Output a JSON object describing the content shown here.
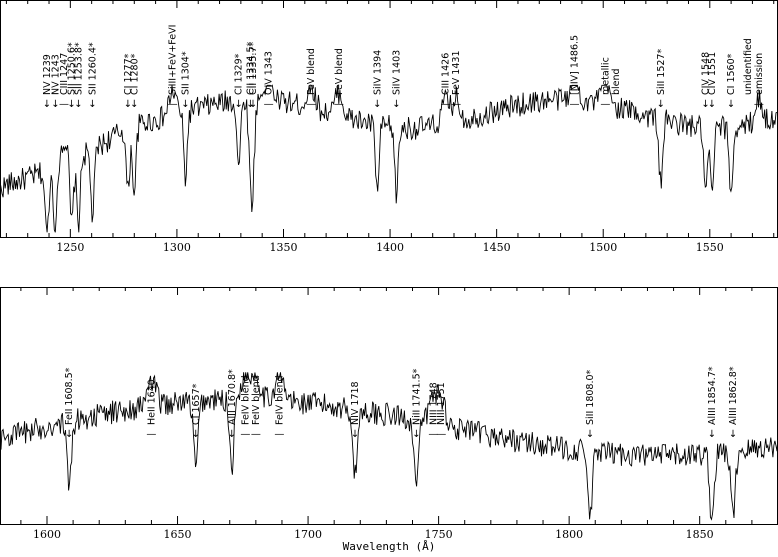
{
  "chart_data": [
    {
      "type": "line",
      "name": "panel-top",
      "xlim": [
        1217,
        1582
      ],
      "ticks": [
        1250,
        1300,
        1350,
        1400,
        1450,
        1500,
        1550
      ],
      "tick_labels": [
        "1250",
        "1300",
        "1350",
        "1400",
        "1450",
        "1500",
        "1550"
      ],
      "ylim": [
        0,
        1
      ],
      "annotations": [
        {
          "text": "NV 1239",
          "x": 1239,
          "marker": "↓"
        },
        {
          "text": "NV 1243",
          "x": 1243,
          "marker": "↓"
        },
        {
          "text": "CIII 1247",
          "x": 1247,
          "marker": "—"
        },
        {
          "text": "SII 1250.6*",
          "x": 1250.6,
          "marker": "↓"
        },
        {
          "text": "SII 1253.8*",
          "x": 1253.8,
          "marker": "↓"
        },
        {
          "text": "SII 1260.4*",
          "x": 1260.4,
          "marker": "↓"
        },
        {
          "text": "CI 1277*",
          "x": 1277,
          "marker": "↓"
        },
        {
          "text": "CI 1280*",
          "x": 1280,
          "marker": "↓"
        },
        {
          "text": "SiIII+FeV+FeVI",
          "x": 1298,
          "marker": "—"
        },
        {
          "text": "SII 1304*",
          "x": 1304,
          "marker": "↓"
        },
        {
          "text": "CI 1329*",
          "x": 1329,
          "marker": "↓"
        },
        {
          "text": "CII 1334.5*",
          "x": 1334.5,
          "marker": "↓"
        },
        {
          "text": "CII 1335.7*",
          "x": 1335.7,
          "marker": "↓"
        },
        {
          "text": "OIV 1343",
          "x": 1343,
          "marker": "—"
        },
        {
          "text": "FeV blend",
          "x": 1363,
          "marker": "—"
        },
        {
          "text": "FeV blend",
          "x": 1376,
          "marker": "—"
        },
        {
          "text": "SiIV 1394",
          "x": 1394,
          "marker": "↓"
        },
        {
          "text": "SiIV 1403",
          "x": 1403,
          "marker": "↓"
        },
        {
          "text": "CIII 1426",
          "x": 1426,
          "marker": "—"
        },
        {
          "text": "FeV 1431",
          "x": 1431,
          "marker": "—"
        },
        {
          "text": "[NIV] 1486.5",
          "x": 1486.5,
          "marker": "—"
        },
        {
          "text": "metallic",
          "x": 1501,
          "marker": "—"
        },
        {
          "text": "blend",
          "x": 1506,
          "marker": ""
        },
        {
          "text": "SiII 1527*",
          "x": 1527,
          "marker": "↓"
        },
        {
          "text": "CIV 1548",
          "x": 1548,
          "marker": "↓"
        },
        {
          "text": "CIV 1551",
          "x": 1551,
          "marker": "↓"
        },
        {
          "text": "CI 1560*",
          "x": 1560,
          "marker": "↓"
        },
        {
          "text": "unidentified",
          "x": 1568,
          "marker": ""
        },
        {
          "text": "emission",
          "x": 1573,
          "marker": "—"
        }
      ]
    },
    {
      "type": "line",
      "name": "panel-bottom",
      "xlim": [
        1582,
        1880
      ],
      "ticks": [
        1600,
        1650,
        1700,
        1750,
        1800,
        1850
      ],
      "tick_labels": [
        "1600",
        "1650",
        "1700",
        "1750",
        "1800",
        "1850"
      ],
      "ylim": [
        0,
        1
      ],
      "xlabel": "Wavelength (Å)",
      "annotations": [
        {
          "text": "FeII 1608.5*",
          "x": 1608.5,
          "marker": "↓"
        },
        {
          "text": "HeII 1640",
          "x": 1640,
          "marker": "—"
        },
        {
          "text": "CI 1657*",
          "x": 1657,
          "marker": "↓"
        },
        {
          "text": "AlII 1670.8*",
          "x": 1670.8,
          "marker": "↓"
        },
        {
          "text": "FeIV blend",
          "x": 1676,
          "marker": "—"
        },
        {
          "text": "FeIV blend",
          "x": 1680,
          "marker": "—"
        },
        {
          "text": "FeIV blend",
          "x": 1689,
          "marker": "—"
        },
        {
          "text": "NIV 1718",
          "x": 1718,
          "marker": "↓"
        },
        {
          "text": "NiII 1741.5*",
          "x": 1741.5,
          "marker": "↓"
        },
        {
          "text": "NIII 1748",
          "x": 1748,
          "marker": "—"
        },
        {
          "text": "NIII 1751",
          "x": 1751,
          "marker": "—"
        },
        {
          "text": "SiII 1808.0*",
          "x": 1808,
          "marker": "↓"
        },
        {
          "text": "AlIII 1854.7*",
          "x": 1854.7,
          "marker": "↓"
        },
        {
          "text": "AlIII 1862.8*",
          "x": 1862.8,
          "marker": "↓"
        }
      ]
    }
  ]
}
